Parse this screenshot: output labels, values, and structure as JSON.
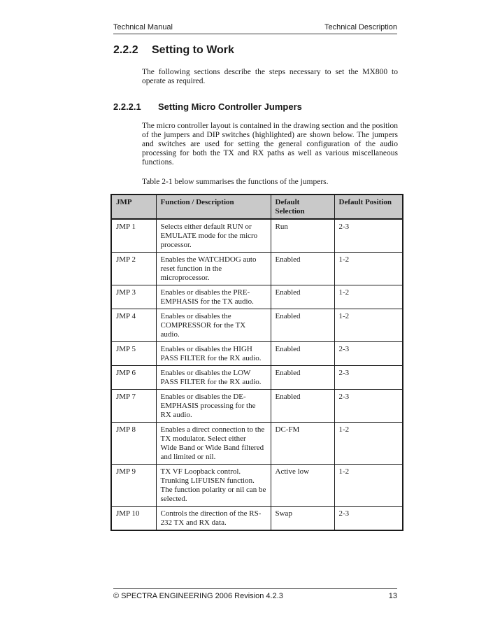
{
  "header": {
    "left": "Technical Manual",
    "right": "Technical Description"
  },
  "sections": [
    {
      "number": "2.2.2",
      "title": "Setting to Work",
      "intro": "The following sections describe the steps necessary to set the MX800 to operate as required."
    },
    {
      "number": "2.2.2.1",
      "title": "Setting Micro Controller Jumpers",
      "intro": "The micro controller layout is contained in the drawing section and the position of the jumpers and DIP switches (highlighted) are shown below. The jumpers and switches are used for setting the general configuration of the audio processing for both the TX and RX paths as well as various miscellaneous functions.",
      "table_lead": "Table 2-1 below summarises the functions of the jumpers."
    }
  ],
  "table": {
    "headers": [
      "JMP",
      "Function / Description",
      "Default Selection",
      "Default Position"
    ],
    "rows": [
      [
        "JMP 1",
        "Selects either default RUN or\nEMULATE mode for the micro\nprocessor.",
        "Run",
        "2-3"
      ],
      [
        "JMP 2",
        "Enables the WATCHDOG auto\nreset function in the\nmicroprocessor.",
        "Enabled",
        "1-2"
      ],
      [
        "JMP 3",
        "Enables or disables the PRE-\nEMPHASIS for the TX audio.",
        "Enabled",
        "1-2"
      ],
      [
        "JMP 4",
        "Enables or disables the\nCOMPRESSOR for the TX\naudio.",
        "Enabled",
        "1-2"
      ],
      [
        "JMP 5",
        "Enables or disables the HIGH\nPASS FILTER for the RX audio.",
        "Enabled",
        "2-3"
      ],
      [
        "JMP 6",
        "Enables or disables the LOW\nPASS FILTER for the RX audio.",
        "Enabled",
        "2-3"
      ],
      [
        "JMP 7",
        "Enables or disables the DE-\nEMPHASIS processing for the\nRX audio.",
        "Enabled",
        "2-3"
      ],
      [
        "JMP 8",
        "Enables a direct connection to the\nTX modulator.  Select either\nWide Band or Wide Band filtered\nand limited or nil.",
        "DC-FM",
        "1-2"
      ],
      [
        "JMP 9",
        "TX VF Loopback control.\nTrunking LIFUISEN function.\nThe function polarity or nil can be\nselected.",
        "Active low",
        "1-2"
      ],
      [
        "JMP 10",
        "Controls the direction of the RS-\n232 TX and RX data.",
        "Swap",
        "2-3"
      ]
    ]
  },
  "footer": {
    "left": "© SPECTRA ENGINEERING 2006 Revision 4.2.3",
    "page_number": "13"
  },
  "colors": {
    "table_header_bg": "#c9c9c9",
    "text": "#1a1a1a",
    "rule": "#3a3a3a"
  }
}
